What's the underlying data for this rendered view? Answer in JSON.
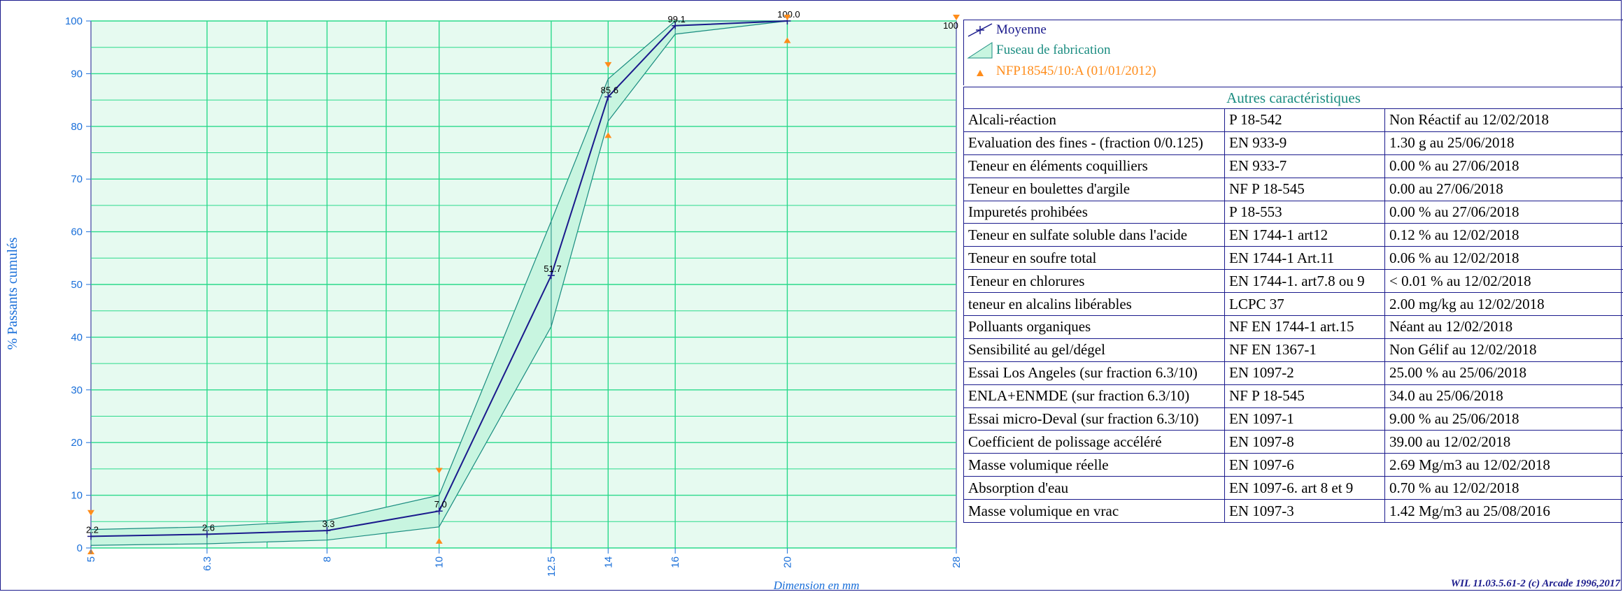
{
  "chart_data": {
    "type": "line",
    "title": "",
    "xlabel": "Dimension en mm",
    "ylabel": "% Passants cumulés",
    "ylim": [
      0,
      100
    ],
    "y_ticks": [
      0,
      10,
      20,
      30,
      40,
      50,
      60,
      70,
      80,
      90,
      100
    ],
    "x_ticks": [
      "5",
      "6.3",
      "8",
      "10",
      "12.5",
      "14",
      "16",
      "20",
      "28"
    ],
    "x_log_scale": true,
    "grid": true,
    "legend_position": "top-right",
    "series": [
      {
        "name": "Moyenne",
        "x": [
          5,
          6.3,
          8,
          10,
          12.5,
          14,
          16,
          20
        ],
        "y": [
          2.2,
          2.6,
          3.3,
          7.0,
          51.7,
          85.6,
          99.1,
          100.0
        ],
        "labels": [
          "2.2",
          "2.6",
          "3.3",
          "7.0",
          "51.7",
          "85.6",
          "99.1",
          "100.0"
        ],
        "color": "#1a1a8c"
      },
      {
        "name": "Fuseau de fabrication",
        "x": [
          5,
          6.3,
          8,
          10,
          12.5,
          14,
          16,
          20
        ],
        "upper": [
          3.5,
          4.0,
          5.2,
          10.0,
          62.0,
          89.0,
          100.0,
          100.0
        ],
        "lower": [
          0.5,
          0.8,
          1.5,
          4.0,
          42.0,
          81.0,
          97.5,
          100.0
        ],
        "color": "#2bd98b",
        "fill": "#c8f5e0"
      },
      {
        "name": "NFP18545/10:A (01/01/2012)",
        "x_upper": [
          5,
          10,
          14,
          20,
          28
        ],
        "upper": [
          6,
          14,
          91,
          100,
          100
        ],
        "x_lower": [
          5,
          10,
          14,
          20
        ],
        "lower": [
          0,
          2,
          79,
          97
        ],
        "color": "#ff8c1a"
      }
    ],
    "extra_point_label": {
      "x": 28,
      "y": 100,
      "text": "100"
    }
  },
  "table": {
    "header": "Autres caractéristiques",
    "rows": [
      [
        "Alcali-réaction",
        "P 18-542",
        "Non Réactif au 12/02/2018"
      ],
      [
        "Evaluation des fines - (fraction 0/0.125)",
        "EN 933-9",
        "1.30 g  au 25/06/2018"
      ],
      [
        "Teneur en éléments coquilliers",
        "EN 933-7",
        "0.00 %  au 27/06/2018"
      ],
      [
        "Teneur en boulettes d'argile",
        "NF P 18-545",
        "0.00   au 27/06/2018"
      ],
      [
        "Impuretés prohibées",
        "P 18-553",
        "0.00 %  au 27/06/2018"
      ],
      [
        "Teneur en sulfate soluble dans l'acide",
        "EN 1744-1 art12",
        "0.12 %  au 12/02/2018"
      ],
      [
        "Teneur en soufre total",
        "EN 1744-1 Art.11",
        "0.06 %  au 12/02/2018"
      ],
      [
        "Teneur en chlorures",
        "EN 1744-1. art7.8 ou 9",
        "< 0.01 %  au 12/02/2018"
      ],
      [
        "teneur en alcalins libérables",
        "LCPC 37",
        "2.00 mg/kg  au 12/02/2018"
      ],
      [
        "Polluants organiques",
        "NF EN 1744-1 art.15",
        "Néant au 12/02/2018"
      ],
      [
        "Sensibilité au gel/dégel",
        "NF EN 1367-1",
        "Non Gélif au 12/02/2018"
      ],
      [
        "Essai Los Angeles (sur fraction 6.3/10)",
        "EN 1097-2",
        "25.00 %  au 25/06/2018"
      ],
      [
        "ENLA+ENMDE (sur fraction 6.3/10)",
        "NF P 18-545",
        "34.0   au 25/06/2018"
      ],
      [
        "Essai micro-Deval (sur fraction 6.3/10)",
        "EN 1097-1",
        "9.00 %  au 25/06/2018"
      ],
      [
        "Coefficient de polissage accéléré",
        "EN 1097-8",
        "39.00   au 12/02/2018"
      ],
      [
        "Masse volumique réelle",
        "EN 1097-6",
        "2.69 Mg/m3  au 12/02/2018"
      ],
      [
        "Absorption d'eau",
        "EN 1097-6. art 8 et 9",
        "0.70 %  au 12/02/2018"
      ],
      [
        "Masse volumique en vrac",
        "EN 1097-3",
        "1.42 Mg/m3  au 25/08/2016"
      ]
    ]
  },
  "footer": "WIL 11.03.5.61-2 (c) Arcade 1996,2017",
  "colors": {
    "frame": "#1a1a8c",
    "plot_bg": "#e6faf0",
    "grid": "#2bd98b",
    "axis_text": "#1a6fd9",
    "mean_line": "#1a1a8c",
    "band_fill": "#c8f5e0",
    "spec_marker": "#ff8c1a",
    "legend_text_norm": "#ff8c1a",
    "legend_text_band": "#1a8c80"
  }
}
